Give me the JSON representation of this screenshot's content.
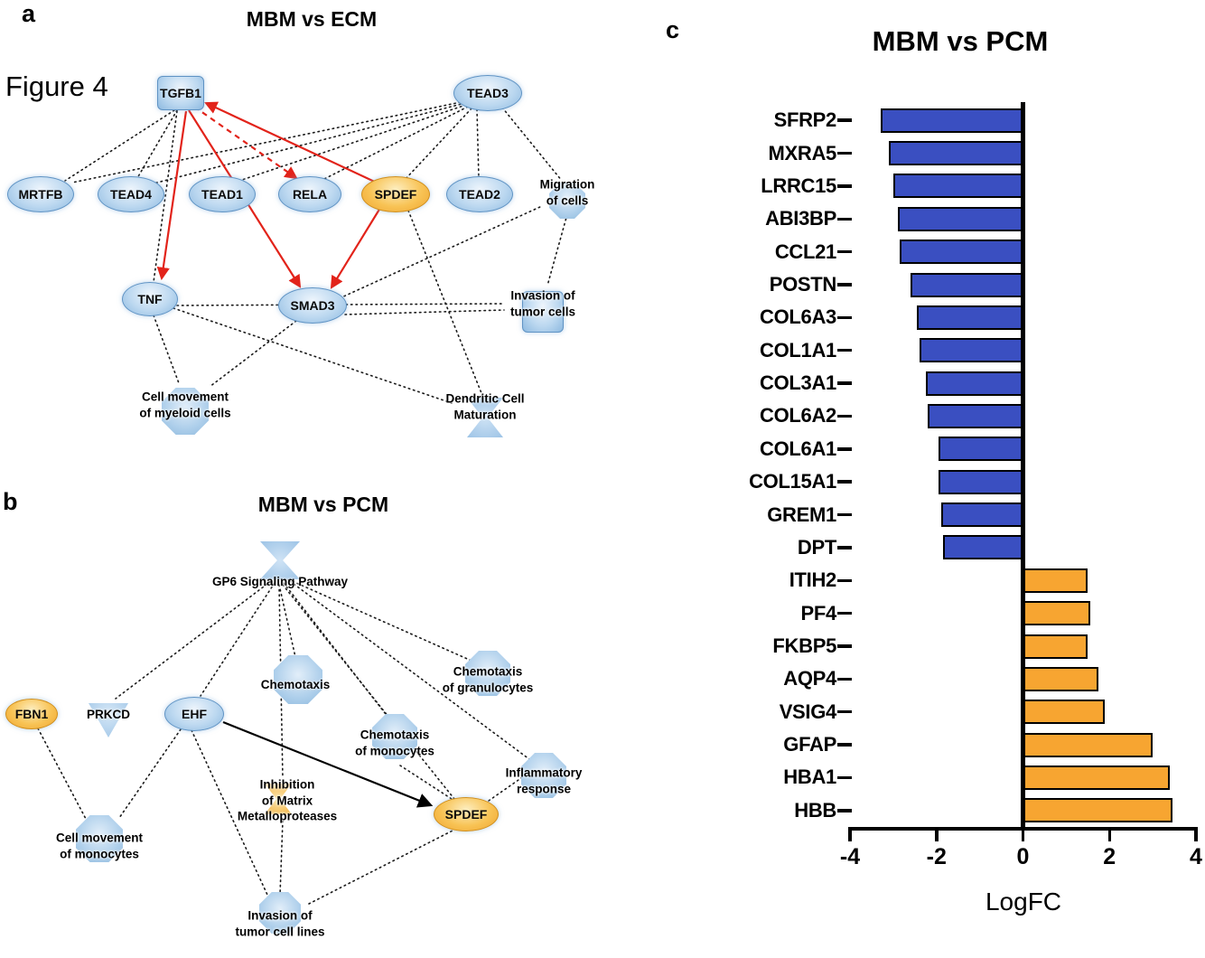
{
  "figure_label": "Figure 4",
  "a": {
    "panel_label": "a",
    "title": "MBM vs ECM",
    "nodes": {
      "tgfb1": "TGFB1",
      "tead3": "TEAD3",
      "mrtfb": "MRTFB",
      "tead4": "TEAD4",
      "tead1": "TEAD1",
      "rela": "RELA",
      "spdef": "SPDEF",
      "tead2": "TEAD2",
      "migration": "Migration\nof cells",
      "tnf": "TNF",
      "smad3": "SMAD3",
      "invasion": "Invasion of\ntumor cells",
      "cellmove": "Cell movement\nof myeloid cells",
      "dendritic": "Dendritic Cell\nMaturation"
    }
  },
  "b": {
    "panel_label": "b",
    "title": "MBM vs PCM",
    "nodes": {
      "gp6": "GP6 Signaling Pathway",
      "fbn1": "FBN1",
      "prkcd": "PRKCD",
      "ehf": "EHF",
      "chemotaxis": "Chemotaxis",
      "chemo_gran": "Chemotaxis\nof granulocytes",
      "chemo_mono": "Chemotaxis\nof monocytes",
      "inflam": "Inflammatory\nresponse",
      "inhibition": "Inhibition\nof Matrix\nMetalloproteases",
      "spdef": "SPDEF",
      "cellmove": "Cell movement\nof monocytes",
      "invasion": "Invasion of\ntumor cell lines"
    }
  },
  "c": {
    "panel_label": "c",
    "title": "MBM vs PCM"
  },
  "chart_data": {
    "type": "bar",
    "orientation": "horizontal",
    "title": "MBM vs PCM",
    "xlabel": "LogFC",
    "xlim": [
      -4,
      4
    ],
    "xticks": [
      -4,
      -2,
      0,
      2,
      4
    ],
    "categories": [
      "SFRP2",
      "MXRA5",
      "LRRC15",
      "ABI3BP",
      "CCL21",
      "POSTN",
      "COL6A3",
      "COL1A1",
      "COL3A1",
      "COL6A2",
      "COL6A1",
      "COL15A1",
      "GREM1",
      "DPT",
      "ITIH2",
      "PF4",
      "FKBP5",
      "AQP4",
      "VSIG4",
      "GFAP",
      "HBA1",
      "HBB"
    ],
    "values": [
      -3.3,
      -3.1,
      -3.0,
      -2.9,
      -2.85,
      -2.6,
      -2.45,
      -2.4,
      -2.25,
      -2.2,
      -1.95,
      -1.95,
      -1.9,
      -1.85,
      1.5,
      1.55,
      1.5,
      1.75,
      1.9,
      3.0,
      3.4,
      3.45
    ],
    "negative_color": "#3a4fc1",
    "positive_color": "#f7a531",
    "bar_border_color": "#000000",
    "grid": false,
    "legend": "none"
  }
}
